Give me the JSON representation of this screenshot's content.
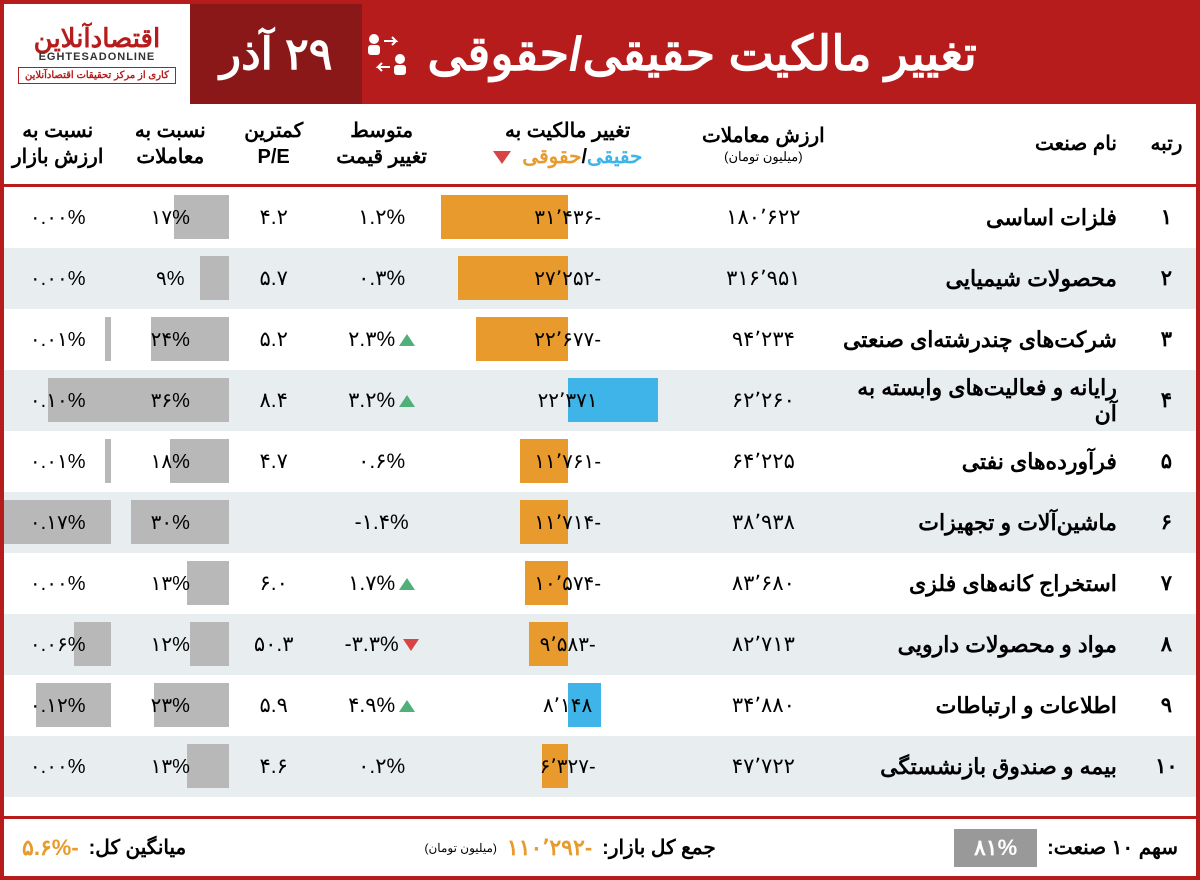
{
  "header": {
    "title": "تغییر مالکیت حقیقی/حقوقی",
    "date": "۲۹ آذر",
    "logo_main": "اقتصادآنلاین",
    "logo_sub": "EGHTESADONLINE",
    "logo_tag": "کاری از مرکز تحقیقات اقتصادآنلاین"
  },
  "columns": {
    "rank": "رتبه",
    "name": "نام صنعت",
    "txvalue": "ارزش معاملات",
    "txvalue_sub": "(میلیون تومان)",
    "change": "تغییر مالکیت به",
    "change_real": "حقیقی",
    "change_sep": "/",
    "change_legal": "حقوقی",
    "avgprice": "متوسط",
    "avgprice_sub": "تغییر قیمت",
    "pe": "کمترین",
    "pe_sub": "P/E",
    "ratio_tx": "نسبت به",
    "ratio_tx_sub": "معاملات",
    "ratio_mkt": "نسبت به",
    "ratio_mkt_sub": "ارزش بازار"
  },
  "chart": {
    "type": "table-with-bars",
    "change_max_abs": 31436,
    "ratio_tx_max": 36,
    "ratio_mkt_max": 0.17,
    "bar_neg_color": "#e89a2c",
    "bar_pos_color": "#3fb4e8",
    "gray_bar_color": "#b8b8b8",
    "row_even_bg": "#e8edf0",
    "row_odd_bg": "#ffffff",
    "border_color": "#b71c1c",
    "up_color": "#4fb07a",
    "down_color": "#d84343"
  },
  "rows": [
    {
      "rank": "۱",
      "name": "فلزات اساسی",
      "txvalue": "۱۸۰٬۶۲۲",
      "change_val": -31436,
      "change_txt": "-۳۱٬۴۳۶",
      "avgprice": "۱.۲%",
      "avgdir": "",
      "pe": "۴.۲",
      "ratio_tx_val": 17,
      "ratio_tx_txt": "۱۷%",
      "ratio_mkt_val": 0.0,
      "ratio_mkt_txt": "۰.۰۰%"
    },
    {
      "rank": "۲",
      "name": "محصولات شیمیایی",
      "txvalue": "۳۱۶٬۹۵۱",
      "change_val": -27252,
      "change_txt": "-۲۷٬۲۵۲",
      "avgprice": "۰.۳%",
      "avgdir": "",
      "pe": "۵.۷",
      "ratio_tx_val": 9,
      "ratio_tx_txt": "۹%",
      "ratio_mkt_val": 0.0,
      "ratio_mkt_txt": "۰.۰۰%"
    },
    {
      "rank": "۳",
      "name": "شرکت‌های چندرشته‌ای صنعتی",
      "txvalue": "۹۴٬۲۳۴",
      "change_val": -22677,
      "change_txt": "-۲۲٬۶۷۷",
      "avgprice": "۲.۳%",
      "avgdir": "up",
      "pe": "۵.۲",
      "ratio_tx_val": 24,
      "ratio_tx_txt": "۲۴%",
      "ratio_mkt_val": 0.01,
      "ratio_mkt_txt": "۰.۰۱%"
    },
    {
      "rank": "۴",
      "name": "رایانه و فعالیت‌های وابسته به آن",
      "txvalue": "۶۲٬۲۶۰",
      "change_val": 22371,
      "change_txt": "۲۲٬۳۷۱",
      "avgprice": "۳.۲%",
      "avgdir": "up",
      "pe": "۸.۴",
      "ratio_tx_val": 36,
      "ratio_tx_txt": "۳۶%",
      "ratio_mkt_val": 0.1,
      "ratio_mkt_txt": "۰.۱۰%"
    },
    {
      "rank": "۵",
      "name": "فرآورده‌های نفتی",
      "txvalue": "۶۴٬۲۲۵",
      "change_val": -11761,
      "change_txt": "-۱۱٬۷۶۱",
      "avgprice": "۰.۶%",
      "avgdir": "",
      "pe": "۴.۷",
      "ratio_tx_val": 18,
      "ratio_tx_txt": "۱۸%",
      "ratio_mkt_val": 0.01,
      "ratio_mkt_txt": "۰.۰۱%"
    },
    {
      "rank": "۶",
      "name": "ماشین‌آلات و تجهیزات",
      "txvalue": "۳۸٬۹۳۸",
      "change_val": -11714,
      "change_txt": "-۱۱٬۷۱۴",
      "avgprice": "-۱.۴%",
      "avgdir": "",
      "pe": "",
      "ratio_tx_val": 30,
      "ratio_tx_txt": "۳۰%",
      "ratio_mkt_val": 0.17,
      "ratio_mkt_txt": "۰.۱۷%"
    },
    {
      "rank": "۷",
      "name": "استخراج کانه‌های فلزی",
      "txvalue": "۸۳٬۶۸۰",
      "change_val": -10574,
      "change_txt": "-۱۰٬۵۷۴",
      "avgprice": "۱.۷%",
      "avgdir": "up",
      "pe": "۶.۰",
      "ratio_tx_val": 13,
      "ratio_tx_txt": "۱۳%",
      "ratio_mkt_val": 0.0,
      "ratio_mkt_txt": "۰.۰۰%"
    },
    {
      "rank": "۸",
      "name": "مواد و محصولات دارویی",
      "txvalue": "۸۲٬۷۱۳",
      "change_val": -9583,
      "change_txt": "-۹٬۵۸۳",
      "avgprice": "-۳.۳%",
      "avgdir": "down",
      "pe": "۵۰.۳",
      "ratio_tx_val": 12,
      "ratio_tx_txt": "۱۲%",
      "ratio_mkt_val": 0.06,
      "ratio_mkt_txt": "۰.۰۶%"
    },
    {
      "rank": "۹",
      "name": "اطلاعات و ارتباطات",
      "txvalue": "۳۴٬۸۸۰",
      "change_val": 8148,
      "change_txt": "۸٬۱۴۸",
      "avgprice": "۴.۹%",
      "avgdir": "up",
      "pe": "۵.۹",
      "ratio_tx_val": 23,
      "ratio_tx_txt": "۲۳%",
      "ratio_mkt_val": 0.12,
      "ratio_mkt_txt": "۰.۱۲%"
    },
    {
      "rank": "۱۰",
      "name": "بیمه و صندوق بازنشستگی",
      "txvalue": "۴۷٬۷۲۲",
      "change_val": -6327,
      "change_txt": "-۶٬۳۲۷",
      "avgprice": "۰.۲%",
      "avgdir": "",
      "pe": "۴.۶",
      "ratio_tx_val": 13,
      "ratio_tx_txt": "۱۳%",
      "ratio_mkt_val": 0.0,
      "ratio_mkt_txt": "۰.۰۰%"
    }
  ],
  "footer": {
    "share_label": "سهم ۱۰ صنعت:",
    "share_val": "۸۱%",
    "total_label": "جمع کل بازار:",
    "total_val": "-۱۱۰٬۲۹۲",
    "total_sub": "(میلیون تومان)",
    "avg_label": "میانگین کل:",
    "avg_val": "-۵.۶%"
  }
}
